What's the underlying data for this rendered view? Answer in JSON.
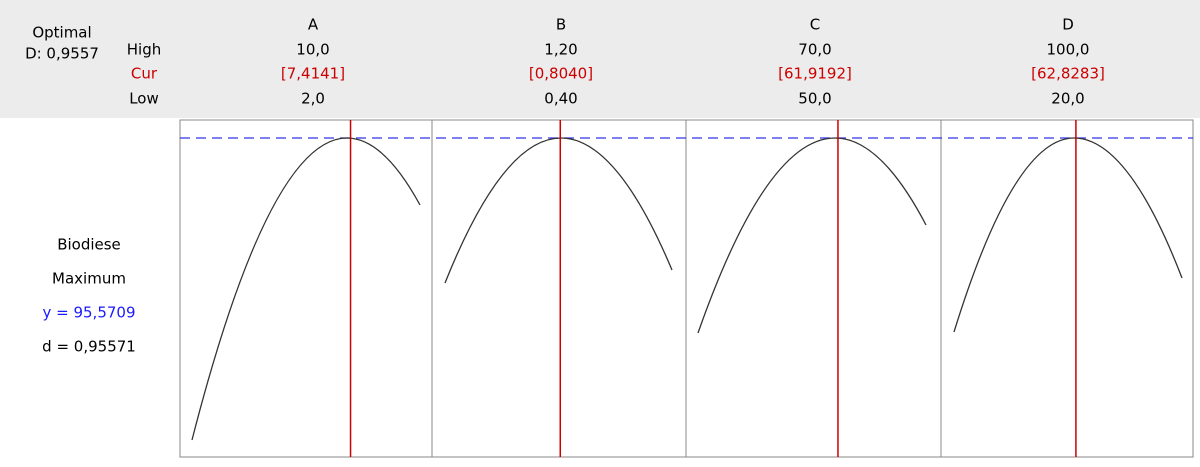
{
  "optimizer": {
    "optimal_label": "Optimal",
    "d_label": "D: 0,9557",
    "row_labels": {
      "high": "High",
      "cur": "Cur",
      "low": "Low"
    },
    "factors": [
      {
        "name": "A",
        "high": {
          "value": 10,
          "label": "10,0"
        },
        "cur": {
          "value": 7.4141,
          "label": "[7,4141]"
        },
        "low": {
          "value": 2,
          "label": "2,0"
        }
      },
      {
        "name": "B",
        "high": {
          "value": 1.2,
          "label": "1,20"
        },
        "cur": {
          "value": 0.804,
          "label": "[0,8040]"
        },
        "low": {
          "value": 0.4,
          "label": "0,40"
        }
      },
      {
        "name": "C",
        "high": {
          "value": 70,
          "label": "70,0"
        },
        "cur": {
          "value": 61.9192,
          "label": "[61,9192]"
        },
        "low": {
          "value": 50,
          "label": "50,0"
        }
      },
      {
        "name": "D",
        "high": {
          "value": 100,
          "label": "100,0"
        },
        "cur": {
          "value": 62.8283,
          "label": "[62,8283]"
        },
        "low": {
          "value": 20,
          "label": "20,0"
        }
      }
    ],
    "response": {
      "name": "Biodiese",
      "goal": "Maximum",
      "y_label": "y = 95,5709",
      "d_label": "d = 0,95571"
    }
  }
}
